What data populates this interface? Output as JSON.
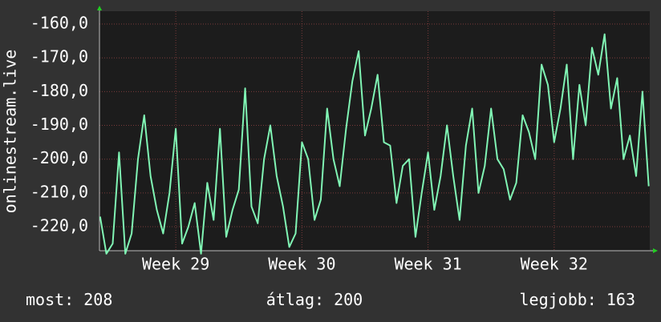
{
  "chart_data": {
    "type": "line",
    "y_label": "onlinestream.live",
    "x": [
      28.4,
      28.45,
      28.5,
      28.55,
      28.6,
      28.65,
      28.7,
      28.75,
      28.8,
      28.85,
      28.9,
      28.95,
      29.0,
      29.05,
      29.1,
      29.15,
      29.2,
      29.25,
      29.3,
      29.35,
      29.4,
      29.45,
      29.5,
      29.55,
      29.6,
      29.65,
      29.7,
      29.75,
      29.8,
      29.85,
      29.9,
      29.95,
      30.0,
      30.05,
      30.1,
      30.15,
      30.2,
      30.25,
      30.3,
      30.35,
      30.4,
      30.45,
      30.5,
      30.55,
      30.6,
      30.65,
      30.7,
      30.75,
      30.8,
      30.85,
      30.9,
      30.95,
      31.0,
      31.05,
      31.1,
      31.15,
      31.2,
      31.25,
      31.3,
      31.35,
      31.4,
      31.45,
      31.5,
      31.55,
      31.6,
      31.65,
      31.7,
      31.75,
      31.8,
      31.85,
      31.9,
      31.95,
      32.0,
      32.05,
      32.1,
      32.15,
      32.2,
      32.25,
      32.3,
      32.35,
      32.4,
      32.45,
      32.5,
      32.55,
      32.6,
      32.65,
      32.7,
      32.75
    ],
    "series": [
      {
        "color": "#80f5b4",
        "values": [
          -217,
          -228,
          -225,
          -198,
          -228,
          -222,
          -200,
          -187,
          -205,
          -215,
          -222,
          -210,
          -191,
          -225,
          -220,
          -213,
          -228,
          -207,
          -218,
          -191,
          -223,
          -215,
          -209,
          -179,
          -214,
          -219,
          -200,
          -190,
          -205,
          -214,
          -226,
          -222,
          -195,
          -200,
          -218,
          -212,
          -185,
          -200,
          -208,
          -191,
          -177,
          -168,
          -193,
          -185,
          -175,
          -195,
          -196,
          -213,
          -202,
          -200,
          -223,
          -210,
          -198,
          -215,
          -205,
          -190,
          -205,
          -218,
          -196,
          -185,
          -210,
          -202,
          -185,
          -200,
          -203,
          -212,
          -207,
          -187,
          -192,
          -200,
          -172,
          -178,
          -195,
          -185,
          -172,
          -200,
          -178,
          -190,
          -167,
          -175,
          -163,
          -185,
          -176,
          -200,
          -193,
          -205,
          -180,
          -208
        ]
      }
    ],
    "xlim": [
      28.395,
      32.758
    ],
    "xticks": [
      {
        "value": 29,
        "label": "Week 29"
      },
      {
        "value": 30,
        "label": "Week 30"
      },
      {
        "value": 31,
        "label": "Week 31"
      },
      {
        "value": 32,
        "label": "Week 32"
      }
    ],
    "ylim": [
      -227.1,
      -156.2
    ],
    "yticks": [
      {
        "value": -160,
        "label": "-160,0"
      },
      {
        "value": -170,
        "label": "-170,0"
      },
      {
        "value": -180,
        "label": "-180,0"
      },
      {
        "value": -190,
        "label": "-190,0"
      },
      {
        "value": -200,
        "label": "-200,0"
      },
      {
        "value": -210,
        "label": "-210,0"
      },
      {
        "value": -220,
        "label": "-220,0"
      }
    ],
    "grid": true,
    "footer": [
      {
        "label": "most:",
        "value": 208
      },
      {
        "label": "átlag:",
        "value": 200
      },
      {
        "label": "legjobb:",
        "value": 163
      }
    ]
  }
}
